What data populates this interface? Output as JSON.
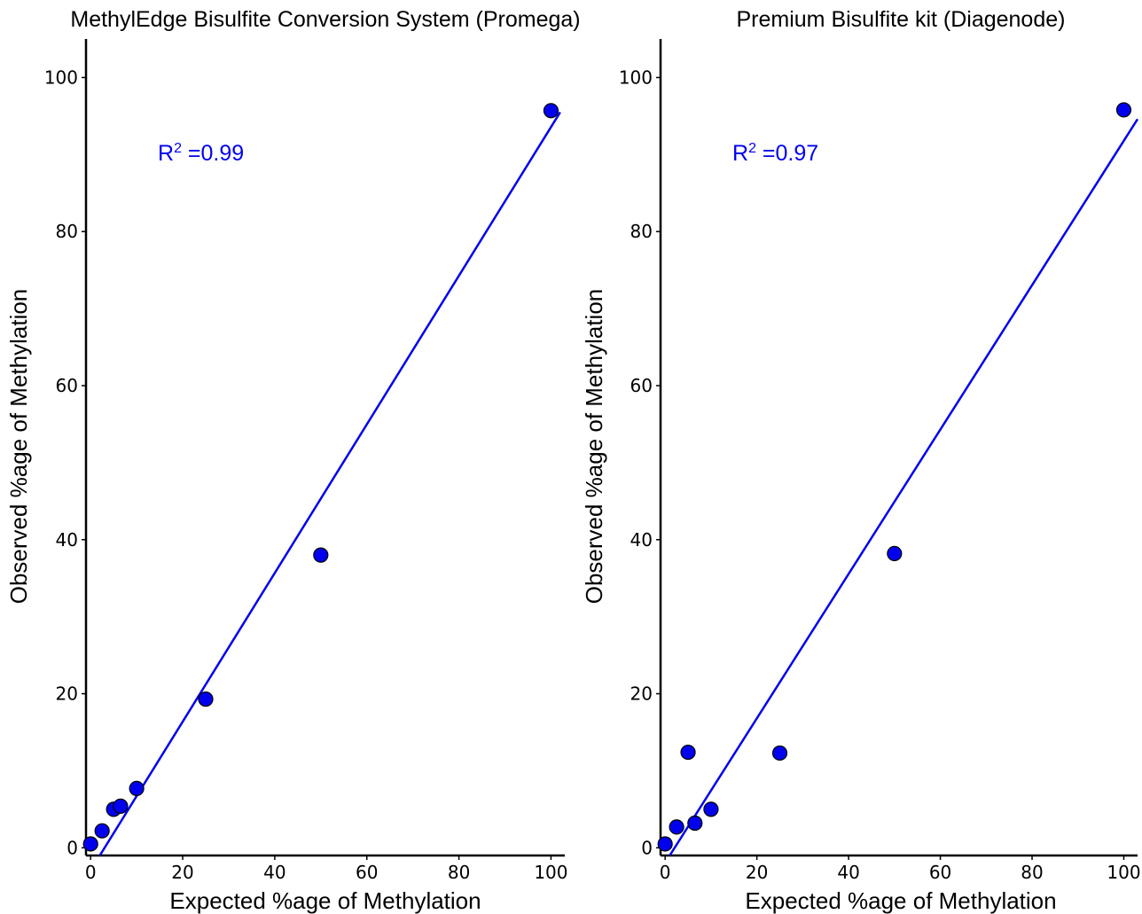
{
  "colors": {
    "series": "#0000ee",
    "marker_edge": "#000000",
    "axis": "#000000"
  },
  "r2_prefix": "R",
  "r2_sup": "2",
  "chart_data": [
    {
      "type": "scatter",
      "title": "MethylEdge Bisulfite Conversion System (Promega)",
      "xlabel": "Expected %age of Methylation",
      "ylabel": "Observed %age of Methylation",
      "xlim": [
        -1,
        103
      ],
      "ylim": [
        -1,
        105
      ],
      "xticks": [
        0,
        20,
        40,
        60,
        80,
        100
      ],
      "yticks": [
        0,
        20,
        40,
        60,
        80,
        100
      ],
      "grid": false,
      "points": [
        {
          "x": 0,
          "y": 0.5
        },
        {
          "x": 2.5,
          "y": 2.2
        },
        {
          "x": 5,
          "y": 5
        },
        {
          "x": 6.5,
          "y": 5.4
        },
        {
          "x": 10,
          "y": 7.7
        },
        {
          "x": 25,
          "y": 19.3
        },
        {
          "x": 50,
          "y": 38
        },
        {
          "x": 100,
          "y": 95.7
        }
      ],
      "fit": {
        "x": [
          2,
          102
        ],
        "y": [
          -1,
          95.5
        ]
      },
      "r2_value": " =0.99"
    },
    {
      "type": "scatter",
      "title": "Premium Bisulfite kit (Diagenode)",
      "xlabel": "Expected %age of Methylation",
      "ylabel": "Observed %age of Methylation",
      "xlim": [
        -1,
        103
      ],
      "ylim": [
        -1,
        105
      ],
      "xticks": [
        0,
        20,
        40,
        60,
        80,
        100
      ],
      "yticks": [
        0,
        20,
        40,
        60,
        80,
        100
      ],
      "grid": false,
      "points": [
        {
          "x": 0,
          "y": 0.5
        },
        {
          "x": 2.5,
          "y": 2.7
        },
        {
          "x": 6.5,
          "y": 3.2
        },
        {
          "x": 10,
          "y": 5
        },
        {
          "x": 5,
          "y": 12.4
        },
        {
          "x": 25,
          "y": 12.3
        },
        {
          "x": 50,
          "y": 38.2
        },
        {
          "x": 100,
          "y": 95.8
        }
      ],
      "fit": {
        "x": [
          1,
          103
        ],
        "y": [
          -1,
          94.6
        ]
      },
      "r2_value": " =0.97"
    }
  ]
}
